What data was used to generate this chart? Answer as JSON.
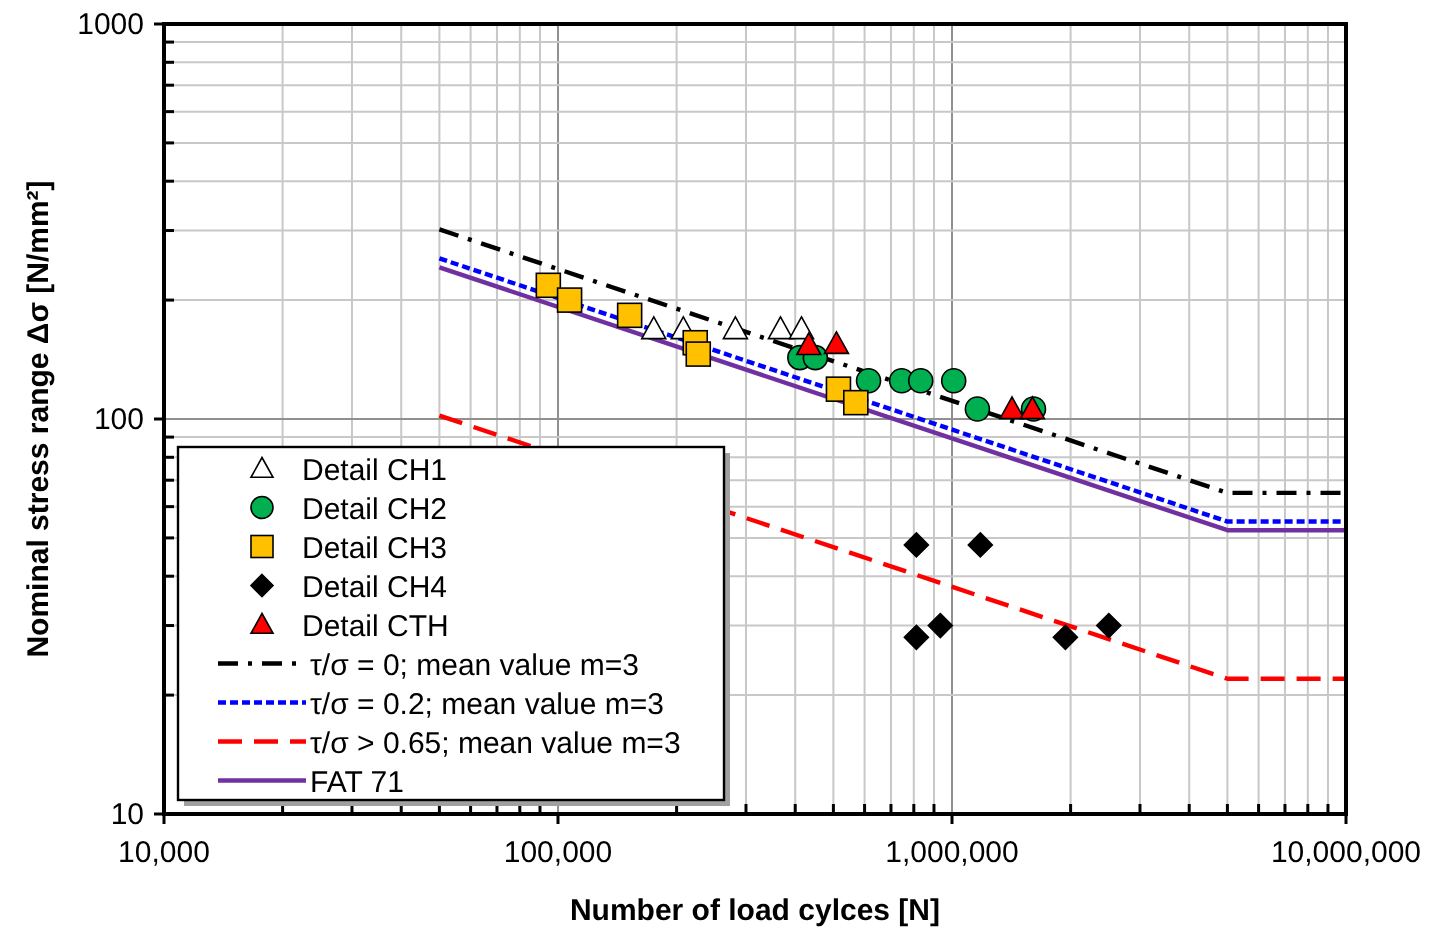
{
  "chart_data": {
    "type": "scatter",
    "xlabel": "Number of load cylces [N]",
    "ylabel": "Nominal stress range Δσ  [N/mm²]",
    "log": "xy",
    "grid": true,
    "legend": "bottom left",
    "xlim": [
      10000,
      10000000
    ],
    "ylim": [
      10,
      1000
    ],
    "xticks": [
      {
        "value": 10000,
        "label": "10,000"
      },
      {
        "value": 100000,
        "label": "100,000"
      },
      {
        "value": 1000000,
        "label": "1,000,000"
      },
      {
        "value": 10000000,
        "label": "10,000,000"
      }
    ],
    "yticks": [
      10,
      100,
      1000
    ],
    "series": [
      {
        "name": "Detail CH1",
        "marker": "triangle",
        "color": "#ffffff",
        "x": [
          175000,
          208000,
          282000,
          367000,
          415000
        ],
        "values": [
          169,
          169,
          169,
          169,
          169
        ]
      },
      {
        "name": "Detail CH2",
        "marker": "circle",
        "color": "#00b050",
        "x": [
          411000,
          450000,
          614000,
          745000,
          833000,
          1010000,
          1160000,
          1610000
        ],
        "values": [
          143,
          143,
          125,
          125,
          125,
          125,
          106,
          106
        ]
      },
      {
        "name": "Detail CH3",
        "marker": "square",
        "color": "#ffc000",
        "x": [
          94500,
          107000,
          152000,
          223000,
          227000,
          515000,
          570000
        ],
        "values": [
          218,
          200,
          183,
          156,
          146,
          119,
          110
        ]
      },
      {
        "name": "Detail CH4",
        "marker": "diamond",
        "color": "#000000",
        "x": [
          812000,
          1180000,
          812000,
          934000,
          1940000,
          2500000
        ],
        "values": [
          48,
          48,
          28,
          30,
          28,
          30
        ]
      },
      {
        "name": "Detail CTH",
        "marker": "triangle",
        "color": "#ff0000",
        "x": [
          433000,
          509000,
          1420000,
          1600000
        ],
        "values": [
          154,
          155,
          106,
          106
        ]
      },
      {
        "name": "τ/σ = 0; mean value m=3",
        "type": "line",
        "marker": "none",
        "line_style": "dashdot",
        "color": "#000000",
        "x": [
          50000,
          5000000,
          10000000
        ],
        "values": [
          302,
          65,
          65
        ]
      },
      {
        "name": "τ/σ = 0.2; mean value m=3",
        "type": "line",
        "marker": "none",
        "line_style": "dotted",
        "color": "#0000ff",
        "x": [
          50000,
          5000000,
          10000000
        ],
        "values": [
          255,
          55,
          55
        ]
      },
      {
        "name": "τ/σ > 0.65; mean value m=3",
        "type": "line",
        "marker": "none",
        "line_style": "dashed",
        "color": "#ff0000",
        "x": [
          50000,
          5000000,
          10000000
        ],
        "values": [
          102,
          22,
          22
        ]
      },
      {
        "name": "FAT 71",
        "type": "line",
        "marker": "none",
        "line_style": "solid",
        "color": "#7030a0",
        "x": [
          50000,
          5000000,
          10000000
        ],
        "values": [
          242,
          52.3,
          52.3
        ]
      }
    ]
  }
}
